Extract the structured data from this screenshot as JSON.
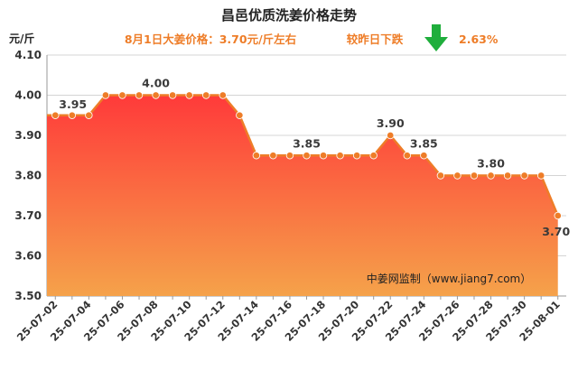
{
  "chart_data": {
    "type": "area",
    "title": "昌邑优质洗姜价格走势",
    "ylabel": "元/斤",
    "ylim": [
      3.5,
      4.1
    ],
    "yticks": [
      "3.50",
      "3.60",
      "3.70",
      "3.80",
      "3.90",
      "4.00",
      "4.10"
    ],
    "grid": "horizontal",
    "x": [
      "25-07-02",
      "25-07-03",
      "25-07-04",
      "25-07-05",
      "25-07-06",
      "25-07-07",
      "25-07-08",
      "25-07-09",
      "25-07-10",
      "25-07-11",
      "25-07-12",
      "25-07-13",
      "25-07-14",
      "25-07-15",
      "25-07-16",
      "25-07-17",
      "25-07-18",
      "25-07-19",
      "25-07-20",
      "25-07-21",
      "25-07-22",
      "25-07-23",
      "25-07-24",
      "25-07-25",
      "25-07-26",
      "25-07-27",
      "25-07-28",
      "25-07-29",
      "25-07-30",
      "25-07-31",
      "25-08-01"
    ],
    "xticks": [
      "25-07-02",
      "25-07-04",
      "25-07-06",
      "25-07-08",
      "25-07-10",
      "25-07-12",
      "25-07-14",
      "25-07-16",
      "25-07-18",
      "25-07-20",
      "25-07-22",
      "25-07-24",
      "25-07-26",
      "25-07-28",
      "25-07-30",
      "25-08-01"
    ],
    "values": [
      3.95,
      3.95,
      3.95,
      4.0,
      4.0,
      4.0,
      4.0,
      4.0,
      4.0,
      4.0,
      4.0,
      3.95,
      3.85,
      3.85,
      3.85,
      3.85,
      3.85,
      3.85,
      3.85,
      3.85,
      3.9,
      3.85,
      3.85,
      3.8,
      3.8,
      3.8,
      3.8,
      3.8,
      3.8,
      3.8,
      3.7
    ],
    "data_labels": [
      {
        "index": 0,
        "text": "3.95"
      },
      {
        "index": 6,
        "text": "4.00"
      },
      {
        "index": 15,
        "text": "3.85"
      },
      {
        "index": 20,
        "text": "3.90"
      },
      {
        "index": 22,
        "text": "3.85"
      },
      {
        "index": 26,
        "text": "3.80"
      },
      {
        "index": 30,
        "text": "3.70"
      }
    ],
    "colors": {
      "line": "#ee7d28",
      "fill_top": "#ff3a3a",
      "fill_bottom": "#f5a24a",
      "subtitle": "#ee7d28",
      "arrow": "#1fae3c"
    }
  },
  "subtitle": {
    "price_text": "8月1日大姜价格：3.70元/斤左右",
    "change_label": "较昨日下跌",
    "change_value": "2.63%",
    "trend_icon": "down-arrow-icon"
  },
  "watermark": "中姜网监制（www.jiang7.com）"
}
